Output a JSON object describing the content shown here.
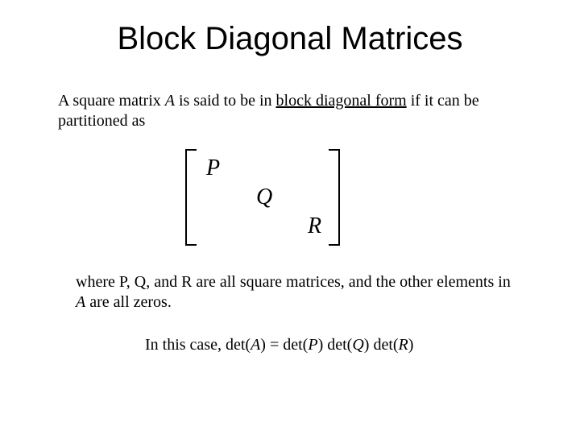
{
  "title": "Block Diagonal Matrices",
  "intro": {
    "pre": "A square matrix ",
    "A": "A",
    "mid": " is said to be in ",
    "term": "block diagonal form",
    "post": " if it can be partitioned as"
  },
  "matrix": {
    "P": "P",
    "Q": "Q",
    "R": "R",
    "cell_fontsize": 28,
    "bracket_color": "#000000"
  },
  "where": {
    "pre": "where P, Q, and R are all square matrices, and the other elements in ",
    "A": "A",
    "post": " are all zeros."
  },
  "det": {
    "lead": "In this case,   det(",
    "A": "A",
    "eq": ") = det(",
    "P": "P",
    "m1": ") det(",
    "Q": "Q",
    "m2": ") det(",
    "R": "R",
    "end": ")"
  },
  "style": {
    "title_fontsize": 40,
    "body_fontsize": 20,
    "title_font": "Arial",
    "body_font": "Times New Roman",
    "background": "#ffffff",
    "text_color": "#000000"
  }
}
